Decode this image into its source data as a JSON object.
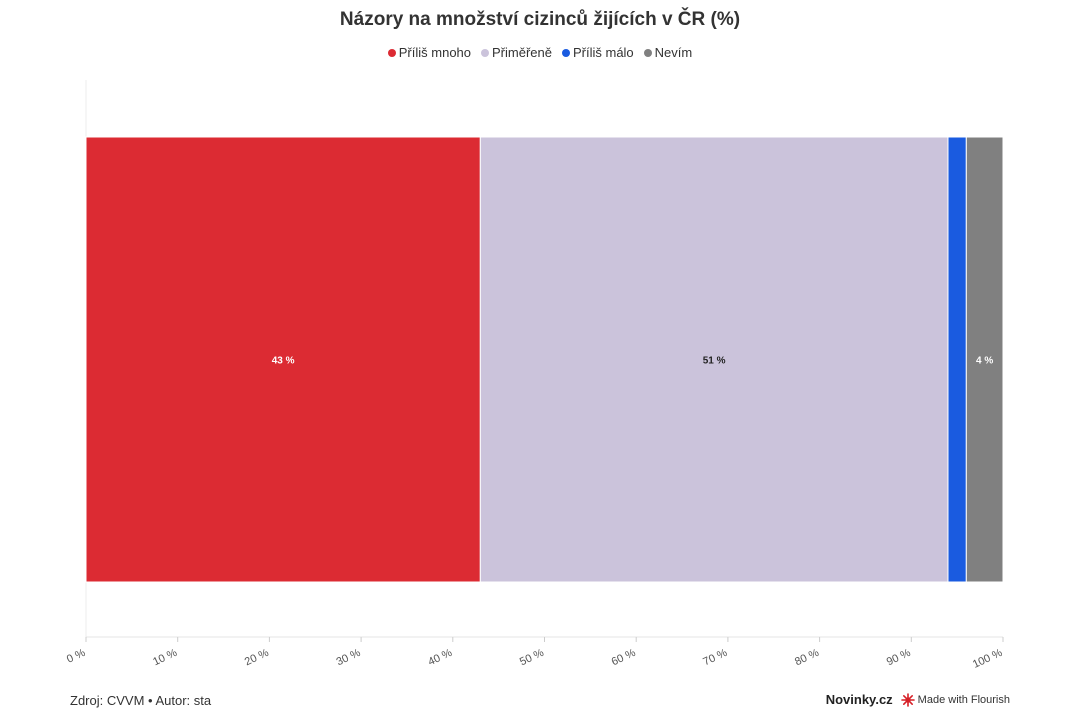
{
  "chart_data": {
    "type": "bar",
    "orientation": "horizontal",
    "stacked": true,
    "title": "Názory na množství cizinců žijících v ČR (%)",
    "series": [
      {
        "name": "Příliš mnoho",
        "value": 43,
        "label": "43 %",
        "color": "#dc2b33",
        "label_color": "#ffffff"
      },
      {
        "name": "Přiměřeně",
        "value": 51,
        "label": "51 %",
        "color": "#cbc3db",
        "label_color": "#222222"
      },
      {
        "name": "Příliš málo",
        "value": 2,
        "label": "",
        "color": "#1a5be0",
        "label_color": "#ffffff"
      },
      {
        "name": "Nevím",
        "value": 4,
        "label": "4 %",
        "color": "#808080",
        "label_color": "#ffffff"
      }
    ],
    "xlim": [
      0,
      100
    ],
    "x_ticks": [
      "0 %",
      "10 %",
      "20 %",
      "30 %",
      "40 %",
      "50 %",
      "60 %",
      "70 %",
      "80 %",
      "90 %",
      "100 %"
    ],
    "legend_position": "top-center",
    "grid": false
  },
  "footer": {
    "source": "Zdroj: CVVM • Autor: sta",
    "brand": "Novinky.cz",
    "made_with": "Made with Flourish"
  }
}
